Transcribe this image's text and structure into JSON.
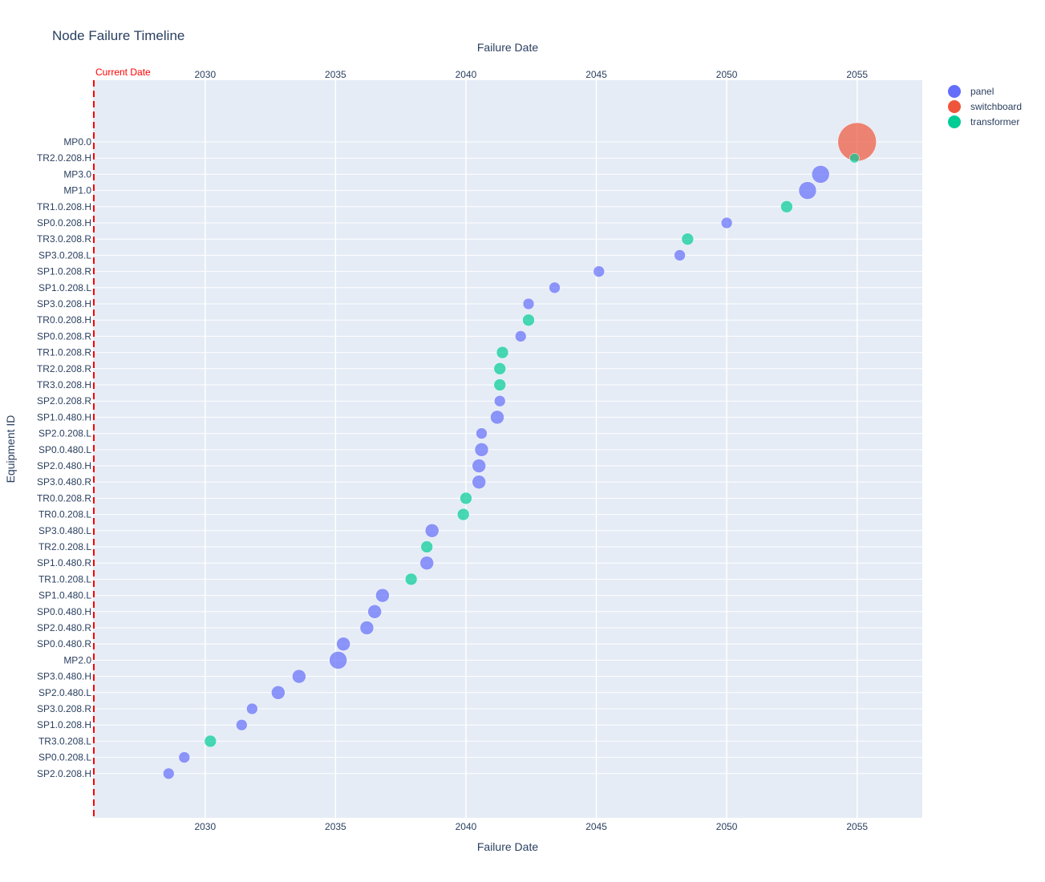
{
  "chart_data": {
    "type": "scatter",
    "title": "Node Failure Timeline",
    "xlabel": "Failure Date",
    "ylabel": "Equipment ID",
    "xlim": [
      2025.7,
      2057.5
    ],
    "x_ticks": [
      2030,
      2035,
      2040,
      2045,
      2050,
      2055
    ],
    "grid": true,
    "legend_position": "top-right",
    "annotation": {
      "text": "Current Date",
      "x": 2025.7,
      "color": "#ff0000"
    },
    "colors": {
      "panel": "#636efa",
      "switchboard": "#ef553b",
      "transformer": "#00cc96"
    },
    "series": [
      {
        "name": "panel",
        "color": "#636efa"
      },
      {
        "name": "switchboard",
        "color": "#ef553b"
      },
      {
        "name": "transformer",
        "color": "#00cc96"
      }
    ],
    "categories": [
      "MP0.0",
      "TR2.0.208.H",
      "MP3.0",
      "MP1.0",
      "TR1.0.208.H",
      "SP0.0.208.H",
      "TR3.0.208.R",
      "SP3.0.208.L",
      "SP1.0.208.R",
      "SP1.0.208.L",
      "SP3.0.208.H",
      "TR0.0.208.H",
      "SP0.0.208.R",
      "TR1.0.208.R",
      "TR2.0.208.R",
      "TR3.0.208.H",
      "SP2.0.208.R",
      "SP1.0.480.H",
      "SP2.0.208.L",
      "SP0.0.480.L",
      "SP2.0.480.H",
      "SP3.0.480.R",
      "TR0.0.208.R",
      "TR0.0.208.L",
      "SP3.0.480.L",
      "TR2.0.208.L",
      "SP1.0.480.R",
      "TR1.0.208.L",
      "SP1.0.480.L",
      "SP0.0.480.H",
      "SP2.0.480.R",
      "SP0.0.480.R",
      "MP2.0",
      "SP3.0.480.H",
      "SP2.0.480.L",
      "SP3.0.208.R",
      "SP1.0.208.H",
      "TR3.0.208.L",
      "SP0.0.208.L",
      "SP2.0.208.H"
    ],
    "points": [
      {
        "id": "MP0.0",
        "type": "switchboard",
        "x": 2055.0,
        "size": 48
      },
      {
        "id": "TR2.0.208.H",
        "type": "transformer",
        "x": 2054.9,
        "size": 12
      },
      {
        "id": "MP3.0",
        "type": "panel",
        "x": 2053.6,
        "size": 22
      },
      {
        "id": "MP1.0",
        "type": "panel",
        "x": 2053.1,
        "size": 22
      },
      {
        "id": "TR1.0.208.H",
        "type": "transformer",
        "x": 2052.3,
        "size": 15
      },
      {
        "id": "SP0.0.208.H",
        "type": "panel",
        "x": 2050.0,
        "size": 14
      },
      {
        "id": "TR3.0.208.R",
        "type": "transformer",
        "x": 2048.5,
        "size": 15
      },
      {
        "id": "SP3.0.208.L",
        "type": "panel",
        "x": 2048.2,
        "size": 14
      },
      {
        "id": "SP1.0.208.R",
        "type": "panel",
        "x": 2045.1,
        "size": 14
      },
      {
        "id": "SP1.0.208.L",
        "type": "panel",
        "x": 2043.4,
        "size": 14
      },
      {
        "id": "SP3.0.208.H",
        "type": "panel",
        "x": 2042.4,
        "size": 14
      },
      {
        "id": "TR0.0.208.H",
        "type": "transformer",
        "x": 2042.4,
        "size": 15
      },
      {
        "id": "SP0.0.208.R",
        "type": "panel",
        "x": 2042.1,
        "size": 14
      },
      {
        "id": "TR1.0.208.R",
        "type": "transformer",
        "x": 2041.4,
        "size": 15
      },
      {
        "id": "TR2.0.208.R",
        "type": "transformer",
        "x": 2041.3,
        "size": 15
      },
      {
        "id": "TR3.0.208.H",
        "type": "transformer",
        "x": 2041.3,
        "size": 15
      },
      {
        "id": "SP2.0.208.R",
        "type": "panel",
        "x": 2041.3,
        "size": 14
      },
      {
        "id": "SP1.0.480.H",
        "type": "panel",
        "x": 2041.2,
        "size": 17
      },
      {
        "id": "SP2.0.208.L",
        "type": "panel",
        "x": 2040.6,
        "size": 14
      },
      {
        "id": "SP0.0.480.L",
        "type": "panel",
        "x": 2040.6,
        "size": 17
      },
      {
        "id": "SP2.0.480.H",
        "type": "panel",
        "x": 2040.5,
        "size": 17
      },
      {
        "id": "SP3.0.480.R",
        "type": "panel",
        "x": 2040.5,
        "size": 17
      },
      {
        "id": "TR0.0.208.R",
        "type": "transformer",
        "x": 2040.0,
        "size": 15
      },
      {
        "id": "TR0.0.208.L",
        "type": "transformer",
        "x": 2039.9,
        "size": 15
      },
      {
        "id": "SP3.0.480.L",
        "type": "panel",
        "x": 2038.7,
        "size": 17
      },
      {
        "id": "TR2.0.208.L",
        "type": "transformer",
        "x": 2038.5,
        "size": 15
      },
      {
        "id": "SP1.0.480.R",
        "type": "panel",
        "x": 2038.5,
        "size": 17
      },
      {
        "id": "TR1.0.208.L",
        "type": "transformer",
        "x": 2037.9,
        "size": 15
      },
      {
        "id": "SP1.0.480.L",
        "type": "panel",
        "x": 2036.8,
        "size": 17
      },
      {
        "id": "SP0.0.480.H",
        "type": "panel",
        "x": 2036.5,
        "size": 17
      },
      {
        "id": "SP2.0.480.R",
        "type": "panel",
        "x": 2036.2,
        "size": 17
      },
      {
        "id": "SP0.0.480.R",
        "type": "panel",
        "x": 2035.3,
        "size": 17
      },
      {
        "id": "MP2.0",
        "type": "panel",
        "x": 2035.1,
        "size": 22
      },
      {
        "id": "SP3.0.480.H",
        "type": "panel",
        "x": 2033.6,
        "size": 17
      },
      {
        "id": "SP2.0.480.L",
        "type": "panel",
        "x": 2032.8,
        "size": 17
      },
      {
        "id": "SP3.0.208.R",
        "type": "panel",
        "x": 2031.8,
        "size": 14
      },
      {
        "id": "SP1.0.208.H",
        "type": "panel",
        "x": 2031.4,
        "size": 14
      },
      {
        "id": "TR3.0.208.L",
        "type": "transformer",
        "x": 2030.2,
        "size": 15
      },
      {
        "id": "SP0.0.208.L",
        "type": "panel",
        "x": 2029.2,
        "size": 14
      },
      {
        "id": "SP2.0.208.H",
        "type": "panel",
        "x": 2028.6,
        "size": 14
      }
    ]
  }
}
